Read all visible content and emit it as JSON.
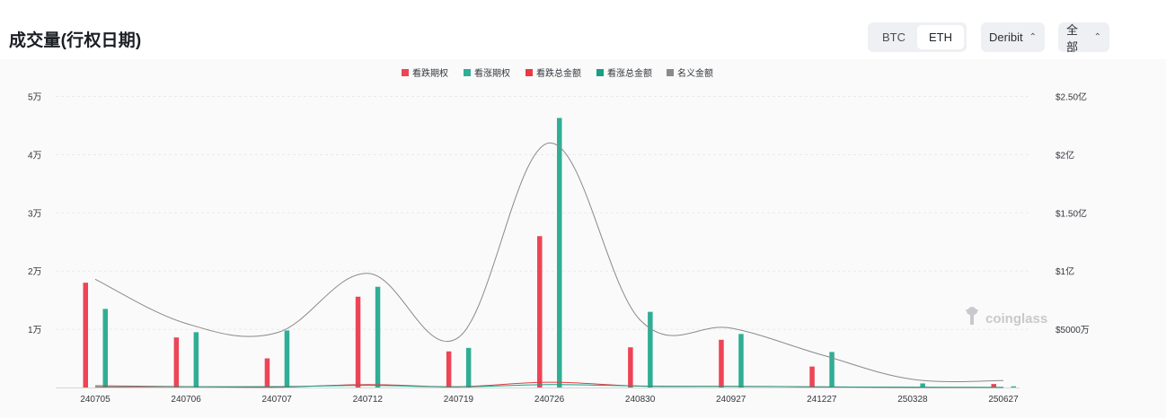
{
  "header": {
    "title": "成交量(行权日期)",
    "coin_tabs": [
      {
        "label": "BTC",
        "active": false
      },
      {
        "label": "ETH",
        "active": true
      }
    ],
    "exchange_select": "Deribit",
    "range_select": "全部"
  },
  "watermark": "coinglass",
  "colors": {
    "put": "#ee4456",
    "call": "#2fae95",
    "put_amount": "#ea3943",
    "call_amount": "#16a085",
    "notional": "#8a8a8a"
  },
  "chart_data": {
    "type": "bar",
    "categories": [
      "240705",
      "240706",
      "240707",
      "240712",
      "240719",
      "240726",
      "240830",
      "240927",
      "241227",
      "250328",
      "250627"
    ],
    "legend": [
      "看跌期权",
      "看涨期权",
      "看跌总金额",
      "看涨总金额",
      "名义金额"
    ],
    "legend_placement": "top-center",
    "y_left": {
      "ticks": [
        "1万",
        "2万",
        "3万",
        "4万",
        "5万"
      ],
      "ylim": [
        0,
        50000
      ]
    },
    "y_right": {
      "ticks": [
        "$5000万",
        "$1亿",
        "$1.50亿",
        "$2亿",
        "$2.50亿"
      ],
      "ylim": [
        0,
        250000000
      ]
    },
    "grid": true,
    "series": [
      {
        "name": "看跌期权",
        "axis": "left",
        "kind": "bar",
        "values": [
          18000,
          8600,
          5000,
          15600,
          6200,
          26000,
          6900,
          8200,
          3600,
          0,
          600
        ]
      },
      {
        "name": "看涨期权",
        "axis": "left",
        "kind": "bar",
        "values": [
          13500,
          9500,
          9800,
          17300,
          6800,
          46300,
          13000,
          9200,
          6100,
          700,
          200
        ]
      },
      {
        "name": "看跌总金额",
        "axis": "right",
        "kind": "line",
        "values": [
          1500000,
          800000,
          300000,
          2500000,
          700000,
          4500000,
          1200000,
          1000000,
          600000,
          100000,
          100000
        ]
      },
      {
        "name": "看涨总金额",
        "axis": "right",
        "kind": "line",
        "values": [
          500000,
          600000,
          800000,
          1800000,
          500000,
          2500000,
          1300000,
          1000000,
          500000,
          300000,
          100000
        ]
      },
      {
        "name": "名义金额",
        "axis": "right",
        "kind": "line",
        "values": [
          93000000,
          55000000,
          47000000,
          98000000,
          43000000,
          210000000,
          58000000,
          51000000,
          28000000,
          7000000,
          6000000
        ]
      }
    ]
  }
}
